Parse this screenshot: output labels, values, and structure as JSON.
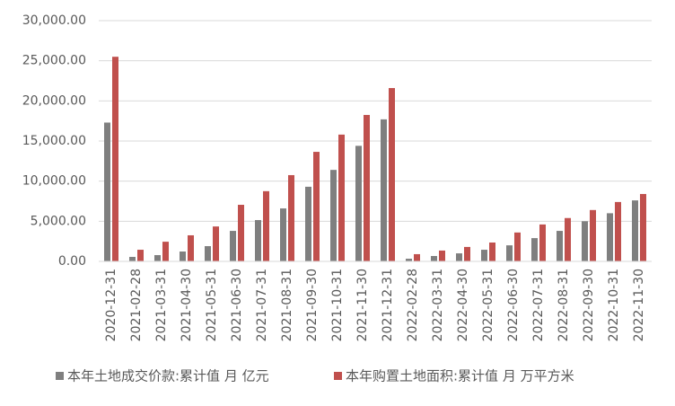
{
  "chart_data": {
    "type": "bar",
    "categories": [
      "2020-12-31",
      "2021-02-28",
      "2021-03-31",
      "2021-04-30",
      "2021-05-31",
      "2021-06-30",
      "2021-07-31",
      "2021-08-31",
      "2021-09-30",
      "2021-10-31",
      "2021-11-30",
      "2021-12-31",
      "2022-02-28",
      "2022-03-31",
      "2022-04-30",
      "2022-05-31",
      "2022-06-30",
      "2022-07-31",
      "2022-08-31",
      "2022-09-30",
      "2022-10-31",
      "2022-11-30"
    ],
    "series": [
      {
        "name": "本年土地成交价款:累计值 月 亿元",
        "color": "#7f7f7f",
        "values": [
          17300,
          560,
          780,
          1230,
          1900,
          3800,
          5150,
          6600,
          9300,
          11400,
          14400,
          17700,
          330,
          670,
          1000,
          1450,
          2000,
          2900,
          3800,
          5000,
          6000,
          7600
        ]
      },
      {
        "name": "本年购置土地面积:累计值 月 万平方米",
        "color": "#c0504d",
        "values": [
          25500,
          1450,
          2450,
          3250,
          4350,
          7050,
          8750,
          10750,
          13650,
          15800,
          18250,
          21600,
          900,
          1350,
          1800,
          2350,
          3600,
          4600,
          5400,
          6400,
          7400,
          8400
        ]
      }
    ],
    "ylim": [
      0,
      30000
    ],
    "yticks": [
      {
        "value": 0,
        "label": "0.00"
      },
      {
        "value": 5000,
        "label": "5,000.00"
      },
      {
        "value": 10000,
        "label": "10,000.00"
      },
      {
        "value": 15000,
        "label": "15,000.00"
      },
      {
        "value": 20000,
        "label": "20,000.00"
      },
      {
        "value": 25000,
        "label": "25,000.00"
      },
      {
        "value": 30000,
        "label": "30,000.00"
      }
    ],
    "grid": true,
    "legend": "bottom"
  }
}
